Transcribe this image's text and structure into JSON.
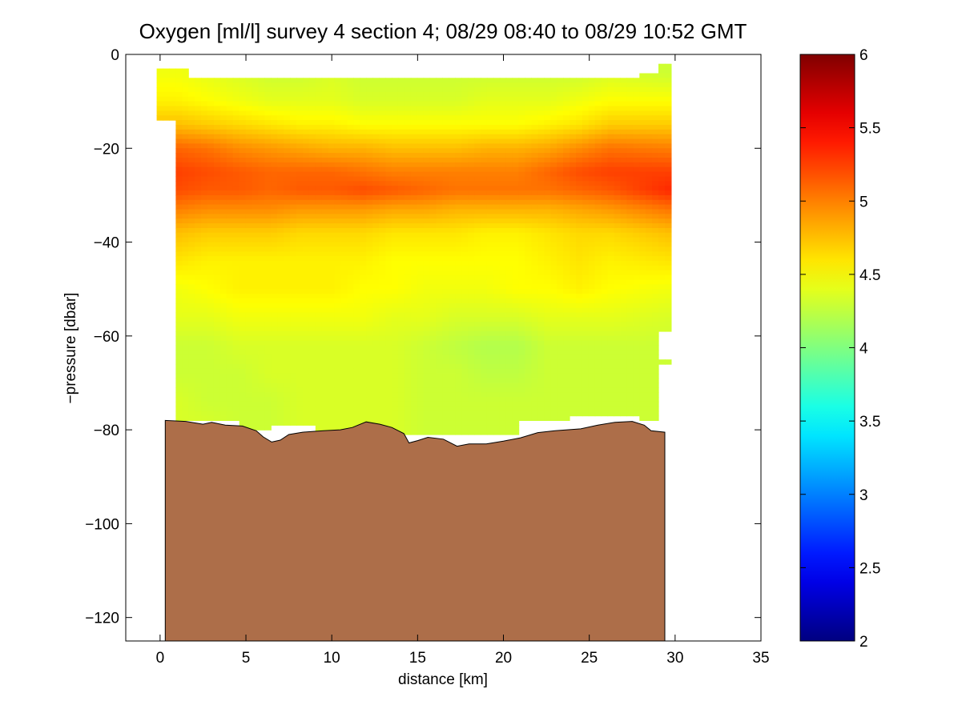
{
  "chart_data": {
    "type": "heatmap",
    "title": "Oxygen [ml/l] survey 4 section 4; 08/29 08:40 to 08/29 10:52 GMT",
    "xlabel": "distance [km]",
    "ylabel": "−pressure [dbar]",
    "xlim": [
      -2,
      35
    ],
    "ylim": [
      -125,
      0
    ],
    "xticks": [
      0,
      5,
      10,
      15,
      20,
      25,
      30,
      35
    ],
    "yticks": [
      0,
      -20,
      -40,
      -60,
      -80,
      -100,
      -120
    ],
    "xtick_labels": [
      "0",
      "5",
      "10",
      "15",
      "20",
      "25",
      "30",
      "35"
    ],
    "ytick_labels": [
      "0",
      "−20",
      "−40",
      "−60",
      "−80",
      "−100",
      "−120"
    ],
    "grid": false,
    "colorbar": {
      "colormap": "jet",
      "range": [
        2,
        6
      ],
      "ticks": [
        2,
        2.5,
        3,
        3.5,
        4,
        4.5,
        5,
        5.5,
        6
      ],
      "tick_labels": [
        "2",
        "2.5",
        "3",
        "3.5",
        "4",
        "4.5",
        "5",
        "5.5",
        "6"
      ]
    },
    "profile_rows": [
      {
        "depth": -4,
        "values": [
          4.45,
          4.4,
          4.35,
          4.3,
          4.3,
          4.35,
          4.3,
          4.3,
          4.3,
          4.3,
          4.3,
          4.3,
          4.3,
          4.3,
          4.35,
          4.3
        ]
      },
      {
        "depth": -10,
        "values": [
          4.55,
          4.5,
          4.45,
          4.4,
          4.4,
          4.4,
          4.35,
          4.35,
          4.35,
          4.35,
          4.4,
          4.4,
          4.4,
          4.45,
          4.5,
          4.5
        ]
      },
      {
        "depth": -15,
        "values": [
          4.75,
          4.7,
          4.65,
          4.6,
          4.55,
          4.55,
          4.5,
          4.5,
          4.5,
          4.5,
          4.5,
          4.5,
          4.55,
          4.6,
          4.7,
          4.7
        ]
      },
      {
        "depth": -20,
        "values": [
          5.1,
          5.05,
          4.95,
          4.9,
          4.85,
          4.8,
          4.8,
          4.75,
          4.75,
          4.75,
          4.8,
          4.8,
          4.85,
          4.95,
          5.05,
          5.0
        ]
      },
      {
        "depth": -25,
        "values": [
          5.25,
          5.2,
          5.15,
          5.1,
          5.1,
          5.1,
          5.05,
          5.0,
          5.0,
          5.0,
          5.0,
          5.0,
          5.1,
          5.2,
          5.25,
          5.25
        ]
      },
      {
        "depth": -29,
        "values": [
          5.2,
          5.15,
          5.15,
          5.1,
          5.15,
          5.15,
          5.2,
          5.15,
          5.1,
          5.05,
          5.05,
          5.05,
          5.05,
          5.1,
          5.15,
          5.35
        ]
      },
      {
        "depth": -33,
        "values": [
          5.0,
          4.95,
          4.95,
          4.95,
          4.9,
          4.9,
          4.9,
          4.85,
          4.85,
          4.8,
          4.8,
          4.8,
          4.8,
          4.85,
          4.9,
          5.05
        ]
      },
      {
        "depth": -38,
        "values": [
          4.75,
          4.7,
          4.7,
          4.7,
          4.65,
          4.65,
          4.65,
          4.6,
          4.6,
          4.6,
          4.55,
          4.55,
          4.6,
          4.65,
          4.65,
          4.75
        ]
      },
      {
        "depth": -44,
        "values": [
          4.6,
          4.55,
          4.55,
          4.55,
          4.55,
          4.55,
          4.55,
          4.5,
          4.5,
          4.5,
          4.5,
          4.5,
          4.55,
          4.6,
          4.55,
          4.6
        ]
      },
      {
        "depth": -50,
        "values": [
          4.45,
          4.5,
          4.55,
          4.55,
          4.55,
          4.55,
          4.5,
          4.5,
          4.45,
          4.45,
          4.45,
          4.5,
          4.5,
          4.55,
          4.5,
          4.45
        ]
      },
      {
        "depth": -56,
        "values": [
          4.4,
          4.4,
          4.45,
          4.45,
          4.45,
          4.45,
          4.45,
          4.4,
          4.4,
          4.35,
          4.35,
          4.35,
          4.4,
          4.4,
          4.4,
          4.35
        ]
      },
      {
        "depth": -62,
        "values": [
          4.3,
          4.3,
          4.35,
          4.35,
          4.35,
          4.35,
          4.35,
          4.35,
          4.3,
          4.25,
          4.2,
          4.2,
          4.3,
          4.3,
          4.3,
          4.3
        ]
      },
      {
        "depth": -68,
        "values": [
          4.3,
          4.3,
          4.3,
          4.35,
          4.35,
          4.35,
          4.35,
          4.35,
          4.3,
          4.3,
          4.25,
          4.25,
          4.3,
          4.3,
          4.3,
          4.3
        ]
      },
      {
        "depth": -74,
        "values": [
          4.35,
          4.3,
          4.3,
          4.3,
          4.35,
          4.35,
          4.35,
          4.35,
          4.3,
          4.3,
          4.3,
          4.3,
          4.3,
          4.3,
          4.3,
          4.3
        ]
      },
      {
        "depth": -80,
        "values": [
          4.35,
          4.35,
          4.3,
          4.3,
          4.35,
          4.35,
          4.35,
          4.35,
          4.3,
          4.3,
          4.3,
          4.3,
          4.3,
          4.3,
          4.3,
          4.3
        ]
      }
    ],
    "profile_x": [
      1.0,
      2.8,
      4.6,
      6.4,
      8.2,
      10.0,
      11.8,
      13.6,
      15.4,
      17.2,
      19.0,
      20.8,
      22.6,
      24.4,
      26.2,
      29.8
    ],
    "data_outline": [
      [
        -0.1,
        -2.8
      ],
      [
        1.8,
        -2.8
      ],
      [
        1.8,
        -4.5
      ],
      [
        28.0,
        -4.5
      ],
      [
        28.0,
        -3.8
      ],
      [
        29.0,
        -3.8
      ],
      [
        29.0,
        -1.5
      ],
      [
        29.8,
        -1.5
      ],
      [
        29.8,
        -58.5
      ],
      [
        28.9,
        -58.5
      ],
      [
        28.9,
        -64.5
      ],
      [
        29.8,
        -64.5
      ],
      [
        29.8,
        -66.0
      ],
      [
        28.9,
        -66.0
      ],
      [
        28.9,
        -77.5
      ],
      [
        28.0,
        -77.5
      ],
      [
        28.0,
        -77.0
      ],
      [
        24.0,
        -77.0
      ],
      [
        24.0,
        -78.0
      ],
      [
        21.0,
        -78.0
      ],
      [
        21.0,
        -80.5
      ],
      [
        9.0,
        -80.5
      ],
      [
        9.0,
        -78.8
      ],
      [
        6.5,
        -78.8
      ],
      [
        6.5,
        -80.0
      ],
      [
        4.5,
        -80.0
      ],
      [
        4.5,
        -78.0
      ],
      [
        0.8,
        -78.0
      ],
      [
        0.8,
        -13.5
      ],
      [
        -0.1,
        -13.5
      ]
    ],
    "seafloor": [
      [
        0.3,
        -78.0
      ],
      [
        1.5,
        -78.2
      ],
      [
        2.5,
        -78.8
      ],
      [
        3.0,
        -78.4
      ],
      [
        3.8,
        -79.0
      ],
      [
        4.8,
        -79.2
      ],
      [
        5.6,
        -80.2
      ],
      [
        6.0,
        -81.5
      ],
      [
        6.5,
        -82.6
      ],
      [
        7.0,
        -82.2
      ],
      [
        7.5,
        -81.0
      ],
      [
        8.3,
        -80.5
      ],
      [
        9.5,
        -80.2
      ],
      [
        10.5,
        -80.0
      ],
      [
        11.2,
        -79.5
      ],
      [
        12.0,
        -78.3
      ],
      [
        12.8,
        -78.8
      ],
      [
        13.5,
        -79.5
      ],
      [
        14.2,
        -80.8
      ],
      [
        14.5,
        -82.8
      ],
      [
        15.0,
        -82.3
      ],
      [
        15.6,
        -81.6
      ],
      [
        16.5,
        -82.0
      ],
      [
        17.3,
        -83.5
      ],
      [
        18.0,
        -83.0
      ],
      [
        19.0,
        -83.0
      ],
      [
        20.0,
        -82.4
      ],
      [
        21.0,
        -81.7
      ],
      [
        22.0,
        -80.6
      ],
      [
        23.0,
        -80.2
      ],
      [
        24.5,
        -79.8
      ],
      [
        25.5,
        -79.0
      ],
      [
        26.5,
        -78.4
      ],
      [
        27.5,
        -78.2
      ],
      [
        28.2,
        -79.0
      ],
      [
        28.6,
        -80.2
      ],
      [
        29.4,
        -80.5
      ]
    ],
    "colors": {
      "seafloor": "#ad6e49",
      "seafloor_edge": "#000000",
      "axes": "#000000",
      "background": "#ffffff"
    }
  }
}
